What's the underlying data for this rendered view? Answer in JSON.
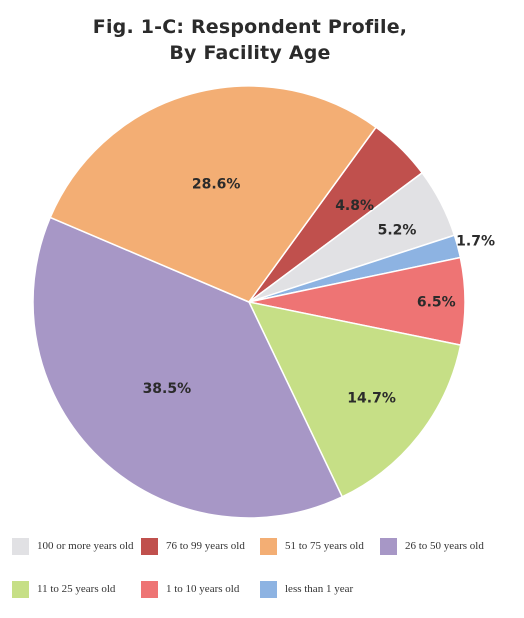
{
  "chart_data": {
    "type": "pie",
    "title_line1": "Fig. 1-C: Respondent Profile,",
    "title_line2": "By Facility Age",
    "slices": [
      {
        "name": "76 to 99 years old",
        "value": 4.8,
        "label": "4.8%",
        "color": "#c0504d"
      },
      {
        "name": "100 or more years old",
        "value": 5.2,
        "label": "5.2%",
        "color": "#e1e1e4"
      },
      {
        "name": "less than 1 year",
        "value": 1.7,
        "label": "1.7%",
        "color": "#8db3e2"
      },
      {
        "name": "1 to 10 years old",
        "value": 6.5,
        "label": "6.5%",
        "color": "#ee7474"
      },
      {
        "name": "11 to 25 years old",
        "value": 14.7,
        "label": "14.7%",
        "color": "#c6df86"
      },
      {
        "name": "26 to 50 years old",
        "value": 38.5,
        "label": "38.5%",
        "color": "#a797c6"
      },
      {
        "name": "51 to 75 years old",
        "value": 28.6,
        "label": "28.6%",
        "color": "#f3ae74"
      }
    ],
    "legend": [
      {
        "label": "100 or more years old",
        "color": "#e1e1e4"
      },
      {
        "label": "76 to 99 years old",
        "color": "#c0504d"
      },
      {
        "label": "51 to 75 years old",
        "color": "#f3ae74"
      },
      {
        "label": "26 to 50 years old",
        "color": "#a797c6"
      },
      {
        "label": "11 to 25 years old",
        "color": "#c6df86"
      },
      {
        "label": "1 to 10 years old",
        "color": "#ee7474"
      },
      {
        "label": "less than 1 year",
        "color": "#8db3e2"
      }
    ]
  }
}
